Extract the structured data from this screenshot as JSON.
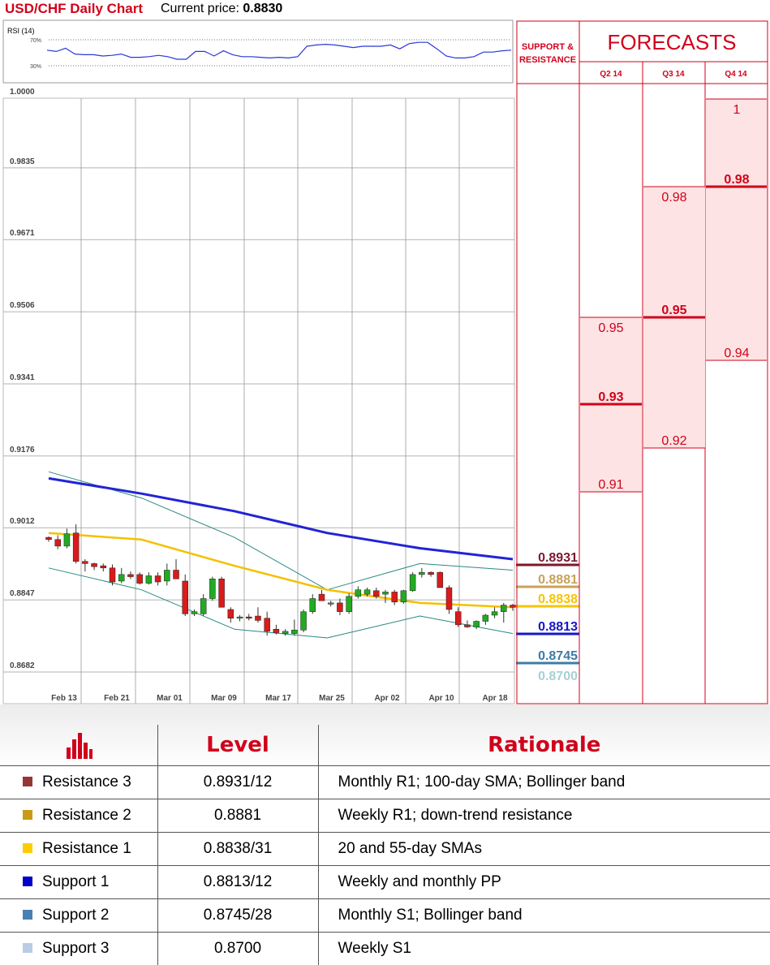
{
  "header": {
    "title": "USD/CHF Daily Chart",
    "price_label": "Current price: ",
    "price_value": "0.8830"
  },
  "rsi": {
    "label": "RSI (14)",
    "levels": [
      "70%",
      "30%"
    ],
    "values": [
      54,
      52,
      57,
      48,
      47,
      47,
      45,
      46,
      48,
      43,
      43,
      44,
      46,
      44,
      40,
      40,
      52,
      52,
      45,
      53,
      47,
      44,
      44,
      43,
      42,
      43,
      42,
      44,
      60,
      62,
      63,
      62,
      60,
      58,
      60,
      60,
      60,
      62,
      56,
      64,
      66,
      66,
      56,
      45,
      42,
      42,
      44,
      51,
      51,
      53,
      54
    ]
  },
  "chart_data": {
    "type": "candlestick",
    "ylim": [
      0.863,
      1.0
    ],
    "y_ticks": [
      "1.0000",
      "0.9835",
      "0.9671",
      "0.9506",
      "0.9341",
      "0.9176",
      "0.9012",
      "0.8847",
      "0.8682"
    ],
    "x_ticks": [
      "Feb 13",
      "Feb 21",
      "Mar 01",
      "Mar 09",
      "Mar 17",
      "Mar 25",
      "Apr 02",
      "Apr 10",
      "Apr 18"
    ],
    "candles": [
      [
        0.899,
        0.8992,
        0.898,
        0.8985
      ],
      [
        0.8985,
        0.8995,
        0.8963,
        0.897
      ],
      [
        0.897,
        0.901,
        0.8965,
        0.8998
      ],
      [
        0.9,
        0.902,
        0.893,
        0.8935
      ],
      [
        0.8935,
        0.894,
        0.8912,
        0.893
      ],
      [
        0.893,
        0.8932,
        0.8915,
        0.8923
      ],
      [
        0.8925,
        0.893,
        0.8912,
        0.892
      ],
      [
        0.892,
        0.8928,
        0.888,
        0.8888
      ],
      [
        0.889,
        0.892,
        0.8885,
        0.8905
      ],
      [
        0.8905,
        0.8912,
        0.8895,
        0.89
      ],
      [
        0.8905,
        0.891,
        0.8882,
        0.8885
      ],
      [
        0.8885,
        0.891,
        0.8882,
        0.8902
      ],
      [
        0.8902,
        0.891,
        0.888,
        0.8888
      ],
      [
        0.889,
        0.893,
        0.888,
        0.8915
      ],
      [
        0.8915,
        0.894,
        0.8905,
        0.8895
      ],
      [
        0.889,
        0.8905,
        0.881,
        0.8815
      ],
      [
        0.8815,
        0.8825,
        0.881,
        0.882
      ],
      [
        0.8815,
        0.886,
        0.881,
        0.885
      ],
      [
        0.885,
        0.89,
        0.8845,
        0.8895
      ],
      [
        0.8895,
        0.89,
        0.883,
        0.883
      ],
      [
        0.8825,
        0.883,
        0.8795,
        0.8805
      ],
      [
        0.8805,
        0.8812,
        0.8798,
        0.8808
      ],
      [
        0.8808,
        0.8815,
        0.88,
        0.8805
      ],
      [
        0.881,
        0.883,
        0.8795,
        0.88
      ],
      [
        0.8805,
        0.882,
        0.8765,
        0.8775
      ],
      [
        0.878,
        0.879,
        0.8768,
        0.8772
      ],
      [
        0.877,
        0.878,
        0.8765,
        0.8775
      ],
      [
        0.877,
        0.8802,
        0.8765,
        0.8778
      ],
      [
        0.8778,
        0.8825,
        0.8773,
        0.882
      ],
      [
        0.882,
        0.886,
        0.8815,
        0.885
      ],
      [
        0.886,
        0.887,
        0.885,
        0.8845
      ],
      [
        0.8838,
        0.8845,
        0.8832,
        0.884
      ],
      [
        0.884,
        0.885,
        0.8812,
        0.882
      ],
      [
        0.882,
        0.8862,
        0.8815,
        0.8855
      ],
      [
        0.8855,
        0.8878,
        0.885,
        0.887
      ],
      [
        0.886,
        0.8875,
        0.8855,
        0.887
      ],
      [
        0.8868,
        0.8875,
        0.885,
        0.8855
      ],
      [
        0.886,
        0.887,
        0.884,
        0.8865
      ],
      [
        0.8865,
        0.887,
        0.8835,
        0.8842
      ],
      [
        0.8842,
        0.887,
        0.8838,
        0.8868
      ],
      [
        0.8868,
        0.891,
        0.8865,
        0.8905
      ],
      [
        0.8905,
        0.892,
        0.8898,
        0.891
      ],
      [
        0.891,
        0.8912,
        0.89,
        0.8905
      ],
      [
        0.891,
        0.8912,
        0.8875,
        0.8875
      ],
      [
        0.8875,
        0.888,
        0.8815,
        0.8825
      ],
      [
        0.882,
        0.883,
        0.8785,
        0.879
      ],
      [
        0.879,
        0.88,
        0.8783,
        0.8785
      ],
      [
        0.8785,
        0.88,
        0.878,
        0.8798
      ],
      [
        0.8798,
        0.8815,
        0.879,
        0.8812
      ],
      [
        0.8812,
        0.883,
        0.8805,
        0.882
      ],
      [
        0.882,
        0.884,
        0.8795,
        0.8835
      ],
      [
        0.8835,
        0.8838,
        0.8822,
        0.883
      ]
    ],
    "sma_100": [
      0.9125,
      0.909,
      0.905,
      0.9,
      0.8965,
      0.894
    ],
    "sma_55": [
      0.9,
      0.8985,
      0.8925,
      0.887,
      0.884,
      0.883
    ],
    "bollinger_upper": [
      0.914,
      0.908,
      0.899,
      0.887,
      0.893,
      0.8915
    ],
    "bollinger_lower": [
      0.892,
      0.887,
      0.878,
      0.876,
      0.881,
      0.877
    ],
    "levels": [
      {
        "value": "0.8931",
        "color": "#7b1a2c"
      },
      {
        "value": "0.8881",
        "color": "#c8a25a"
      },
      {
        "value": "0.8838",
        "color": "#f5c400"
      },
      {
        "value": "0.8813",
        "color": "#1616c8"
      },
      {
        "value": "0.8745",
        "color": "#3b7ca6"
      },
      {
        "value": "0.8700",
        "color": "#a8d0d6"
      }
    ]
  },
  "forecasts": {
    "side_title": "SUPPORT & RESISTANCE",
    "title": "FORECASTS",
    "columns": [
      {
        "quarter": "Q2 14",
        "high": "0.95",
        "mid": "0.93",
        "low": "0.91"
      },
      {
        "quarter": "Q3 14",
        "high": "0.98",
        "mid": "0.95",
        "low": "0.92"
      },
      {
        "quarter": "Q4 14",
        "high": "1",
        "mid": "0.98",
        "low": "0.94"
      }
    ]
  },
  "table": {
    "col_level": "Level",
    "col_rationale": "Rationale",
    "rows": [
      {
        "name": "Resistance 3",
        "level": "0.8931/12",
        "rationale": "Monthly R1; 100-day SMA; Bollinger band",
        "color": "#943634"
      },
      {
        "name": "Resistance 2",
        "level": "0.8881",
        "rationale": "Weekly R1; down-trend resistance",
        "color": "#c99a14"
      },
      {
        "name": "Resistance 1",
        "level": "0.8838/31",
        "rationale": "20 and 55-day SMAs",
        "color": "#ffcc00"
      },
      {
        "name": "Support 1",
        "level": "0.8813/12",
        "rationale": "Weekly and monthly PP",
        "color": "#0000cc"
      },
      {
        "name": "Support 2",
        "level": "0.8745/28",
        "rationale": "Monthly S1; Bollinger band",
        "color": "#4a7fb5"
      },
      {
        "name": "Support 3",
        "level": "0.8700",
        "rationale": "Weekly S1",
        "color": "#b8cce4"
      }
    ]
  }
}
